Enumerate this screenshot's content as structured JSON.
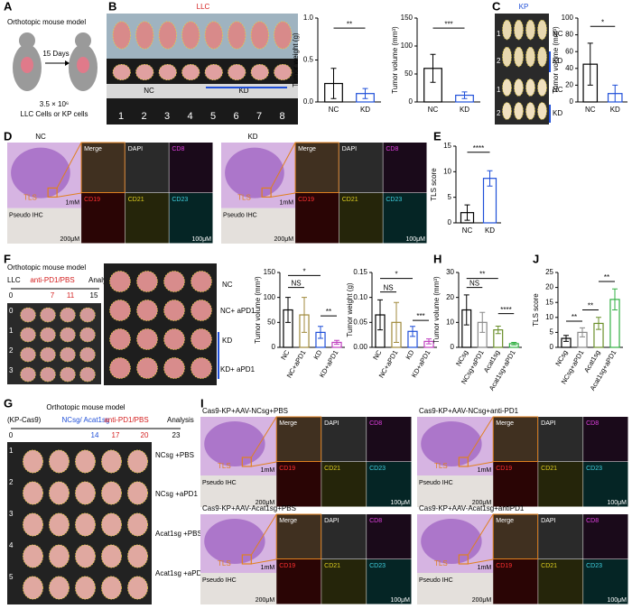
{
  "panels": [
    "A",
    "B",
    "C",
    "D",
    "E",
    "F",
    "G",
    "H",
    "I",
    "J"
  ],
  "A": {
    "title": "Orthotopic mouse model",
    "days": "15 Days",
    "dose": "3.5 × 10⁶",
    "cells": "LLC Cells or KP cells"
  },
  "B": {
    "title": "LLC",
    "groups": [
      "NC",
      "KD"
    ],
    "ruler": [
      "1",
      "2",
      "3",
      "4",
      "5",
      "6",
      "7",
      "8"
    ]
  },
  "C": {
    "title": "KP",
    "rows": [
      "NC",
      "KD",
      "NC",
      "KD"
    ],
    "ruler": [
      "1",
      "2",
      "1",
      "2"
    ]
  },
  "D": {
    "groups": [
      "NC",
      "KD"
    ],
    "channels": [
      "Merge",
      "DAPI",
      "CD8",
      "CD19",
      "CD21",
      "CD23"
    ],
    "region": "TLS",
    "scale_low": "1mM",
    "ihc": "Pseudo IHC",
    "scale_ihc": "200μM",
    "scale_fluor": "100μM"
  },
  "F": {
    "title": "Orthotopic mouse model",
    "cell": "LLC",
    "treatment": "anti-PD1/PBS",
    "analysis": "Analysis",
    "days": [
      "0",
      "7",
      "11",
      "15"
    ],
    "rows": [
      "NC",
      "NC+ aPD1",
      "KD",
      "KD+ aPD1"
    ],
    "grid": [
      "0",
      "1",
      "2",
      "3"
    ]
  },
  "G": {
    "title": "Orthotopic mouse model",
    "cell": "(KP-Cas9)",
    "sg": "NCsg/ Acat1sg",
    "treatment": "anti-PD1/PBS",
    "analysis": "Analysis",
    "days": [
      "0",
      "14",
      "17",
      "20",
      "23"
    ],
    "rows": [
      "NCsg +PBS",
      "NCsg +aPD1",
      "Acat1sg +PBS",
      "Acat1sg +aPD1"
    ],
    "grid": [
      "1",
      "2",
      "3",
      "4",
      "5"
    ]
  },
  "I": {
    "conditions": [
      "Cas9-KP+AAV-NCsg+PBS",
      "Cas9-KP+AAV-NCsg+anti-PD1",
      "Cas9-KP+AAV-Acat1sg+PBS",
      "Cas9-KP+AAV-Acat1sg+antiPD1"
    ],
    "channels": [
      "Merge",
      "DAPI",
      "CD8",
      "CD19",
      "CD21",
      "CD23"
    ],
    "region": "TLS",
    "scale_low": "1mM",
    "ihc": "Pseudo IHC",
    "scale_ihc": "200μM",
    "scale_fluor": "100μM"
  },
  "chart_data": [
    {
      "type": "bar",
      "ylabel": "Tumor weight (g)",
      "categories": [
        "NC",
        "KD"
      ],
      "values": [
        0.22,
        0.1
      ],
      "errors": [
        0.18,
        0.06
      ],
      "colors": [
        "#000000",
        "#1f4fd8"
      ],
      "ylim": [
        0,
        1.0
      ],
      "yticks": [
        {
          "value": 0,
          "label": "0.0"
        },
        {
          "value": 0.5,
          "label": "0.5"
        },
        {
          "value": 1.0,
          "label": "1.0"
        }
      ],
      "annotations": [
        "**"
      ]
    },
    {
      "type": "bar",
      "ylabel": "Tumor volume (mm³)",
      "categories": [
        "NC",
        "KD"
      ],
      "values": [
        60,
        12
      ],
      "errors": [
        25,
        6
      ],
      "colors": [
        "#000000",
        "#1f4fd8"
      ],
      "ylim": [
        0,
        150
      ],
      "yticks": [
        0,
        50,
        100,
        150
      ],
      "annotations": [
        "***"
      ]
    },
    {
      "type": "bar",
      "ylabel": "Tumor volume (mm³)",
      "categories": [
        "NC",
        "KD"
      ],
      "values": [
        45,
        10
      ],
      "errors": [
        25,
        10
      ],
      "colors": [
        "#000000",
        "#1f4fd8"
      ],
      "ylim": [
        0,
        100
      ],
      "yticks": [
        0,
        20,
        40,
        60,
        80,
        100
      ],
      "annotations": [
        "*"
      ]
    },
    {
      "type": "bar",
      "ylabel": "TLS score",
      "categories": [
        "NC",
        "KD"
      ],
      "values": [
        2,
        8.7
      ],
      "errors": [
        1.5,
        1.5
      ],
      "colors": [
        "#000000",
        "#1f4fd8"
      ],
      "ylim": [
        0,
        15
      ],
      "yticks": [
        0,
        5,
        10,
        15
      ],
      "annotations": [
        "****"
      ]
    },
    {
      "type": "bar",
      "ylabel": "Tumor volume (mm³)",
      "categories": [
        "NC",
        "NC+aPD1",
        "KD",
        "KD+aPD1"
      ],
      "values": [
        75,
        65,
        30,
        10
      ],
      "errors": [
        25,
        35,
        12,
        4
      ],
      "colors": [
        "#000000",
        "#a08a3c",
        "#1f4fd8",
        "#c040c0"
      ],
      "ylim": [
        0,
        150
      ],
      "yticks": [
        0,
        50,
        100,
        150
      ],
      "annotations": [
        "*",
        "NS",
        "**"
      ]
    },
    {
      "type": "bar",
      "ylabel": "Tumor weight (g)",
      "categories": [
        "NC",
        "NC+aPD1",
        "KD",
        "KD+aPD1"
      ],
      "values": [
        0.065,
        0.05,
        0.032,
        0.012
      ],
      "errors": [
        0.03,
        0.04,
        0.01,
        0.005
      ],
      "colors": [
        "#000000",
        "#a08a3c",
        "#1f4fd8",
        "#c040c0"
      ],
      "ylim": [
        0,
        0.15
      ],
      "yticks": [
        {
          "value": 0,
          "label": "0.00"
        },
        {
          "value": 0.05,
          "label": "0.05"
        },
        {
          "value": 0.1,
          "label": "0.10"
        },
        {
          "value": 0.15,
          "label": "0.15"
        }
      ],
      "annotations": [
        "*",
        "NS",
        "***"
      ]
    },
    {
      "type": "bar",
      "ylabel": "Tumor volume (mm³)",
      "categories": [
        "NCsg",
        "NCsg+aPD1",
        "Acat1sg",
        "Acat1sg+aPD1"
      ],
      "values": [
        15,
        10,
        7,
        1.5
      ],
      "errors": [
        6,
        4,
        1.5,
        0.5
      ],
      "colors": [
        "#000000",
        "#888888",
        "#6a8f2a",
        "#33b044"
      ],
      "ylim": [
        0,
        30
      ],
      "yticks": [
        0,
        10,
        20,
        30
      ],
      "annotations": [
        "**",
        "NS",
        "****"
      ]
    },
    {
      "type": "bar",
      "ylabel": "TLS score",
      "categories": [
        "NCsg",
        "NCsg+aPD1",
        "Acat1sg",
        "Acat1sg+aPD1"
      ],
      "values": [
        3,
        5,
        8,
        16
      ],
      "errors": [
        1,
        1.5,
        2,
        3.5
      ],
      "colors": [
        "#000000",
        "#888888",
        "#6a8f2a",
        "#33b044"
      ],
      "ylim": [
        0,
        25
      ],
      "yticks": [
        0,
        5,
        10,
        15,
        20,
        25
      ],
      "annotations": [
        "**",
        "**",
        "**"
      ]
    }
  ]
}
